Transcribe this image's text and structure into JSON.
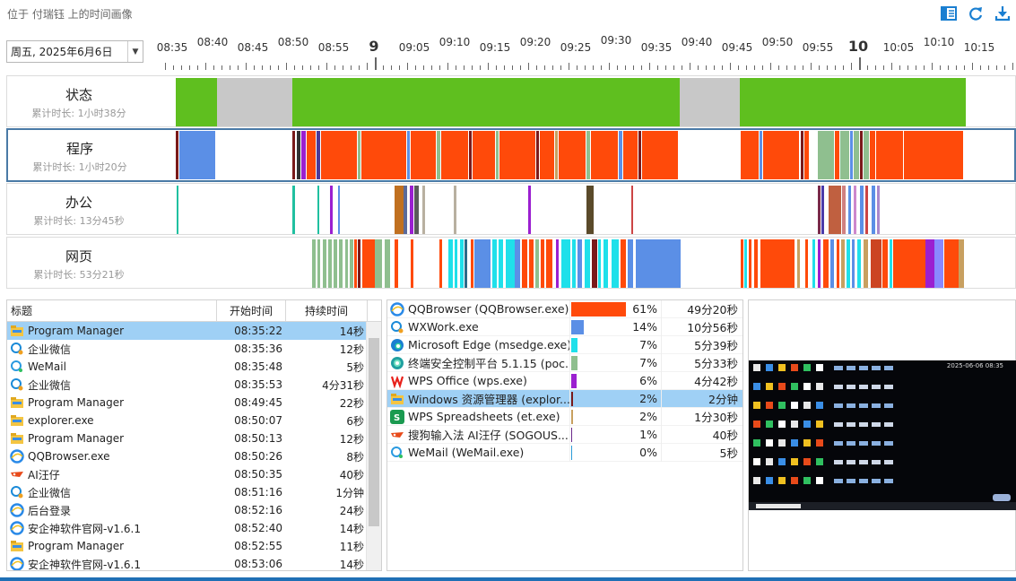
{
  "header": {
    "breadcrumb": "位于 付瑞钰 上的时间画像",
    "icons": [
      "layout-icon",
      "refresh-icon",
      "download-icon"
    ],
    "accent": "#1a7fd1"
  },
  "date_selector": {
    "value": "周五, 2025年6月6日"
  },
  "timeline": {
    "labels": [
      "08:35",
      "08:40",
      "08:45",
      "08:50",
      "08:55",
      "9",
      "09:05",
      "09:10",
      "09:15",
      "09:20",
      "09:25",
      "09:30",
      "09:35",
      "09:40",
      "09:45",
      "09:50",
      "09:55",
      "10",
      "10:05",
      "10:10",
      "10:15",
      "10"
    ],
    "major": [
      "9",
      "10"
    ]
  },
  "tracks": [
    {
      "title": "状态",
      "subtitle": "累计时长: 1小时38分"
    },
    {
      "title": "程序",
      "subtitle": "累计时长: 1小时20分"
    },
    {
      "title": "办公",
      "subtitle": "累计时长: 13分45秒"
    },
    {
      "title": "网页",
      "subtitle": "累计时长: 53分21秒"
    }
  ],
  "colors": {
    "active": "#5fbf1f",
    "idle": "#c8c8c8",
    "qq": "#ff4a0a",
    "wx": "#5b8fe6",
    "edge": "#1fe0ea",
    "ctl": "#8fbf8f",
    "wps": "#9b1fd0",
    "exp": "#7a1a1a",
    "et": "#c8a060"
  },
  "events_table": {
    "columns": [
      "标题",
      "开始时间",
      "持续时间"
    ],
    "rows": [
      {
        "icon": "folder-icon",
        "title": "Program Manager",
        "start": "08:35:22",
        "dur": "14秒"
      },
      {
        "icon": "wxwork-icon",
        "title": "企业微信",
        "start": "08:35:36",
        "dur": "12秒"
      },
      {
        "icon": "wemail-icon",
        "title": "WeMail",
        "start": "08:35:48",
        "dur": "5秒"
      },
      {
        "icon": "wxwork-icon",
        "title": "企业微信",
        "start": "08:35:53",
        "dur": "4分31秒"
      },
      {
        "icon": "folder-icon",
        "title": "Program Manager",
        "start": "08:49:45",
        "dur": "22秒"
      },
      {
        "icon": "folder-icon",
        "title": "explorer.exe",
        "start": "08:50:07",
        "dur": "6秒"
      },
      {
        "icon": "folder-icon",
        "title": "Program Manager",
        "start": "08:50:13",
        "dur": "12秒"
      },
      {
        "icon": "qqbrowser-icon",
        "title": "QQBrowser.exe",
        "start": "08:50:26",
        "dur": "8秒"
      },
      {
        "icon": "sogou-icon",
        "title": "AI汪仔",
        "start": "08:50:35",
        "dur": "40秒"
      },
      {
        "icon": "wxwork-icon",
        "title": "企业微信",
        "start": "08:51:16",
        "dur": "1分钟"
      },
      {
        "icon": "qqbrowser-icon",
        "title": "后台登录",
        "start": "08:52:16",
        "dur": "24秒"
      },
      {
        "icon": "qqbrowser-icon",
        "title": "安企神软件官网-v1.6.1",
        "start": "08:52:40",
        "dur": "14秒"
      },
      {
        "icon": "folder-icon",
        "title": "Program Manager",
        "start": "08:52:55",
        "dur": "11秒"
      },
      {
        "icon": "qqbrowser-icon",
        "title": "安企神软件官网-v1.6.1",
        "start": "08:53:06",
        "dur": "14秒"
      }
    ]
  },
  "apps_table": {
    "rows": [
      {
        "icon": "qqbrowser-icon",
        "name": "QQBrowser (QQBrowser.exe)",
        "pct": "61%",
        "share": 0.61,
        "dur": "49分20秒",
        "color": "#ff4a0a"
      },
      {
        "icon": "wxwork-icon",
        "name": "WXWork.exe",
        "pct": "14%",
        "share": 0.14,
        "dur": "10分56秒",
        "color": "#5b8fe6"
      },
      {
        "icon": "edge-icon",
        "name": "Microsoft Edge (msedge.exe)",
        "pct": "7%",
        "share": 0.07,
        "dur": "5分39秒",
        "color": "#1fe0ea"
      },
      {
        "icon": "security-icon",
        "name": "终端安全控制平台 5.1.15 (poc...",
        "pct": "7%",
        "share": 0.07,
        "dur": "5分33秒",
        "color": "#8fbf8f"
      },
      {
        "icon": "wps-icon",
        "name": "WPS Office (wps.exe)",
        "pct": "6%",
        "share": 0.06,
        "dur": "4分42秒",
        "color": "#9b1fd0"
      },
      {
        "icon": "folder-icon",
        "name": "Windows 资源管理器 (explor...",
        "pct": "2%",
        "share": 0.02,
        "dur": "2分钟",
        "color": "#7a1a1a"
      },
      {
        "icon": "wps-sheet-icon",
        "name": "WPS Spreadsheets (et.exe)",
        "pct": "2%",
        "share": 0.02,
        "dur": "1分30秒",
        "color": "#c8a060"
      },
      {
        "icon": "sogou-icon",
        "name": "搜狗输入法 AI汪仔 (SOGOUS...",
        "pct": "1%",
        "share": 0.01,
        "dur": "40秒",
        "color": "#6a2a8a"
      },
      {
        "icon": "wemail-icon",
        "name": "WeMail (WeMail.exe)",
        "pct": "0%",
        "share": 0.0,
        "dur": "5秒",
        "color": "#2b9bd8"
      }
    ]
  },
  "screenshot_preview": {
    "clock": "2025-06-06 08:35"
  }
}
